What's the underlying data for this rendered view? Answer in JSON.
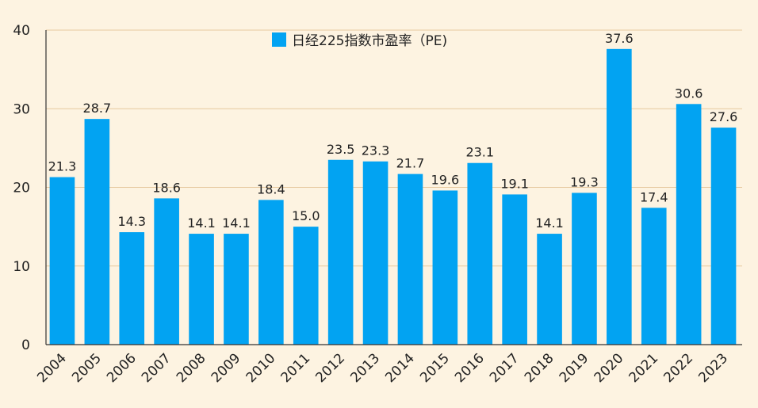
{
  "chart_data": {
    "type": "bar",
    "title": "",
    "xlabel": "",
    "ylabel": "",
    "ylim": [
      0,
      40
    ],
    "yticks": [
      "0",
      "10",
      "20",
      "30",
      "40"
    ],
    "grid": true,
    "legend_position": "top-center",
    "categories": [
      "2004",
      "2005",
      "2006",
      "2007",
      "2008",
      "2009",
      "2010",
      "2011",
      "2012",
      "2013",
      "2014",
      "2015",
      "2016",
      "2017",
      "2018",
      "2019",
      "2020",
      "2021",
      "2022",
      "2023"
    ],
    "series": [
      {
        "name": "日经225指数市盈率（PE)",
        "color": "#02a3f2",
        "values": [
          21.3,
          28.7,
          14.3,
          18.6,
          14.1,
          14.1,
          18.4,
          15.0,
          23.5,
          23.3,
          21.7,
          19.6,
          23.1,
          19.1,
          14.1,
          19.3,
          37.6,
          17.4,
          30.6,
          27.6
        ],
        "labels": [
          "21.3",
          "28.7",
          "14.3",
          "18.6",
          "14.1",
          "14.1",
          "18.4",
          "15.0",
          "23.5",
          "23.3",
          "21.7",
          "19.6",
          "23.1",
          "19.1",
          "14.1",
          "19.3",
          "37.6",
          "17.4",
          "30.6",
          "27.6"
        ]
      }
    ]
  },
  "colors": {
    "background": "#fdf3e1",
    "bar": "#02a3f2",
    "grid": "#e6c9a0",
    "axis": "#333333"
  }
}
